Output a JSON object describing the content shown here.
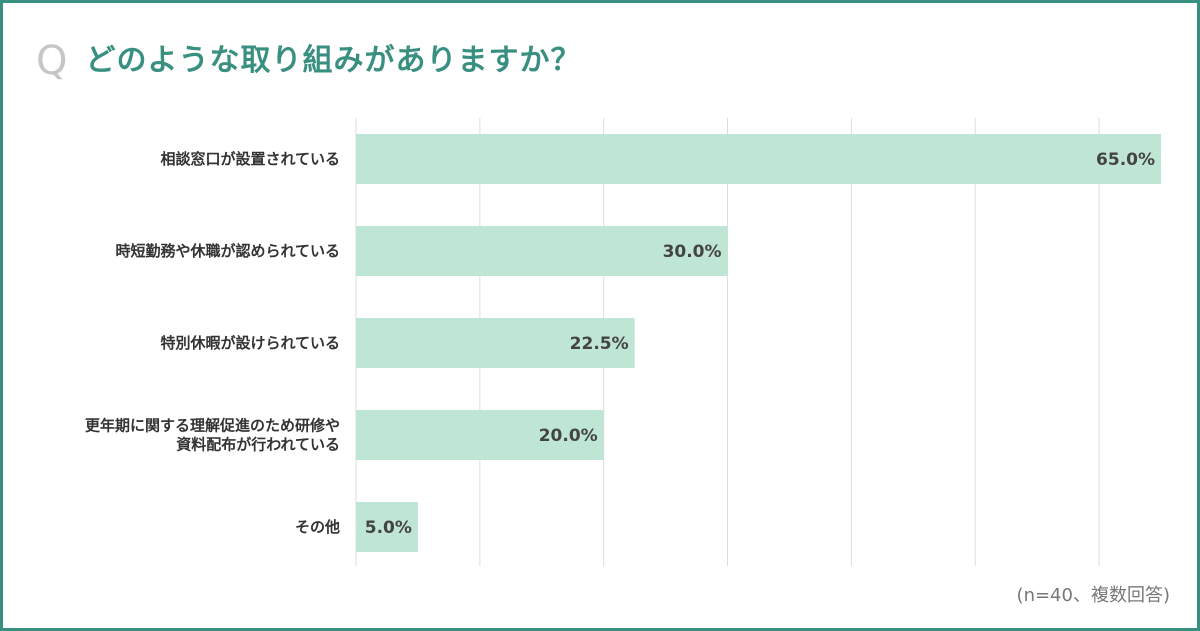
{
  "header": {
    "q_mark": "Q",
    "title": "どのような取り組みがありますか？"
  },
  "note": "(n=40、複数回答)",
  "colors": {
    "accent": "#3a9080",
    "bar": "#bfe5d5",
    "grid": "#dddddd",
    "q_mark": "#c6c6c6"
  },
  "chart_data": {
    "type": "bar",
    "orientation": "horizontal",
    "categories": [
      [
        "相談窓口が設置されている"
      ],
      [
        "時短勤務や休職が認められている"
      ],
      [
        "特別休暇が設けられている"
      ],
      [
        "更年期に関する理解促進のため研修や",
        "資料配布が行われている"
      ],
      [
        "その他"
      ]
    ],
    "values": [
      65.0,
      30.0,
      22.5,
      20.0,
      5.0
    ],
    "value_labels": [
      "65.0%",
      "30.0%",
      "22.5%",
      "20.0%",
      "5.0%"
    ],
    "xlim": [
      0,
      70
    ],
    "grid": true,
    "grid_step": 10
  }
}
